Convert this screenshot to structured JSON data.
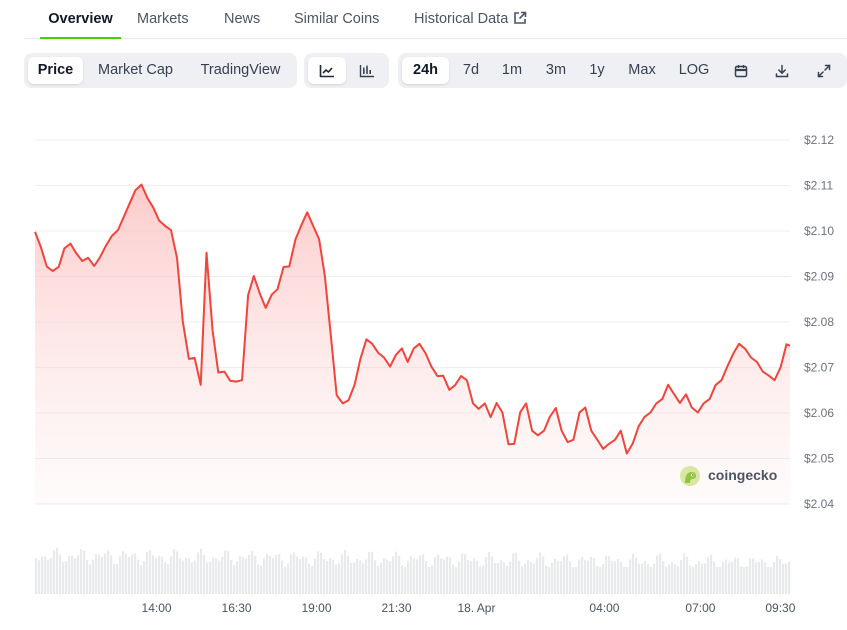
{
  "tabs": [
    {
      "label": "Overview",
      "active": true
    },
    {
      "label": "Markets"
    },
    {
      "label": "News"
    },
    {
      "label": "Similar Coins"
    },
    {
      "label": "Historical Data",
      "icon": "external-link-icon"
    }
  ],
  "toolbar": {
    "metric_buttons": [
      {
        "label": "Price",
        "active": true
      },
      {
        "label": "Market Cap"
      },
      {
        "label": "TradingView"
      }
    ],
    "chart_type_icons": [
      "line-chart-icon",
      "candlestick-chart-icon"
    ],
    "range_buttons": [
      {
        "label": "24h",
        "active": true
      },
      {
        "label": "7d"
      },
      {
        "label": "1m"
      },
      {
        "label": "3m"
      },
      {
        "label": "1y"
      },
      {
        "label": "Max"
      },
      {
        "label": "LOG"
      }
    ],
    "action_icons": [
      "calendar-icon",
      "download-icon",
      "fullscreen-icon"
    ]
  },
  "watermark": {
    "text": "coingecko",
    "icon": "gecko-logo-icon"
  },
  "colors": {
    "line": "#f0453a",
    "fill": "#fde2e2",
    "accent": "#4bcc00",
    "volume": "#e9eaec"
  },
  "chart_data": {
    "type": "area",
    "title": "",
    "xlabel": "",
    "ylabel": "",
    "x_tick_labels": [
      "14:00",
      "16:30",
      "19:00",
      "21:30",
      "18. Apr",
      "04:00",
      "07:00",
      "09:30"
    ],
    "x_tick_hours": [
      14,
      16.5,
      19,
      21.5,
      24,
      28,
      31,
      33.5
    ],
    "x_range_hours": [
      10.2,
      33.8
    ],
    "y_tick_labels": [
      "$2.04",
      "$2.05",
      "$2.06",
      "$2.07",
      "$2.08",
      "$2.09",
      "$2.10",
      "$2.11",
      "$2.12"
    ],
    "y_ticks": [
      2.04,
      2.05,
      2.06,
      2.07,
      2.08,
      2.09,
      2.1,
      2.11,
      2.12
    ],
    "ylim": [
      2.04,
      2.12
    ],
    "grid": true,
    "series": [
      {
        "points": [
          [
            10.2,
            2.0998
          ],
          [
            10.38,
            2.0965
          ],
          [
            10.57,
            2.0922
          ],
          [
            10.75,
            2.0912
          ],
          [
            10.94,
            2.0921
          ],
          [
            11.12,
            2.0962
          ],
          [
            11.31,
            2.0972
          ],
          [
            11.49,
            2.0951
          ],
          [
            11.68,
            2.0934
          ],
          [
            11.86,
            2.0941
          ],
          [
            12.05,
            2.0923
          ],
          [
            12.23,
            2.0942
          ],
          [
            12.42,
            2.0968
          ],
          [
            12.6,
            2.0989
          ],
          [
            12.79,
            2.1002
          ],
          [
            12.97,
            2.103
          ],
          [
            13.16,
            2.1061
          ],
          [
            13.34,
            2.109
          ],
          [
            13.53,
            2.1102
          ],
          [
            13.71,
            2.1073
          ],
          [
            13.9,
            2.1051
          ],
          [
            14.08,
            2.1023
          ],
          [
            14.27,
            2.1011
          ],
          [
            14.45,
            2.1002
          ],
          [
            14.64,
            2.0941
          ],
          [
            14.82,
            2.0801
          ],
          [
            15.01,
            2.0719
          ],
          [
            15.19,
            2.0721
          ],
          [
            15.38,
            2.0662
          ],
          [
            15.56,
            2.0952
          ],
          [
            15.75,
            2.0781
          ],
          [
            15.93,
            2.0689
          ],
          [
            16.12,
            2.0691
          ],
          [
            16.3,
            2.0671
          ],
          [
            16.49,
            2.0669
          ],
          [
            16.67,
            2.0672
          ],
          [
            16.86,
            2.0859
          ],
          [
            17.04,
            2.0901
          ],
          [
            17.23,
            2.0862
          ],
          [
            17.41,
            2.0831
          ],
          [
            17.6,
            2.086
          ],
          [
            17.78,
            2.0872
          ],
          [
            17.97,
            2.0921
          ],
          [
            18.15,
            2.0922
          ],
          [
            18.34,
            2.0981
          ],
          [
            18.52,
            2.1012
          ],
          [
            18.71,
            2.1041
          ],
          [
            18.89,
            2.1012
          ],
          [
            19.08,
            2.0982
          ],
          [
            19.26,
            2.0902
          ],
          [
            19.45,
            2.0769
          ],
          [
            19.63,
            2.0639
          ],
          [
            19.82,
            2.0621
          ],
          [
            20.0,
            2.0628
          ],
          [
            20.19,
            2.0662
          ],
          [
            20.37,
            2.0719
          ],
          [
            20.56,
            2.0762
          ],
          [
            20.74,
            2.0752
          ],
          [
            20.93,
            2.0732
          ],
          [
            21.11,
            2.0722
          ],
          [
            21.3,
            2.0702
          ],
          [
            21.48,
            2.0728
          ],
          [
            21.67,
            2.0742
          ],
          [
            21.85,
            2.0712
          ],
          [
            22.04,
            2.0742
          ],
          [
            22.22,
            2.0752
          ],
          [
            22.41,
            2.0731
          ],
          [
            22.59,
            2.0702
          ],
          [
            22.78,
            2.0681
          ],
          [
            22.96,
            2.0682
          ],
          [
            23.15,
            2.0651
          ],
          [
            23.33,
            2.0661
          ],
          [
            23.52,
            2.0681
          ],
          [
            23.7,
            2.0672
          ],
          [
            23.89,
            2.0621
          ],
          [
            24.07,
            2.0609
          ],
          [
            24.26,
            2.0621
          ],
          [
            24.44,
            2.0591
          ],
          [
            24.63,
            2.0622
          ],
          [
            24.81,
            2.0601
          ],
          [
            25.0,
            2.0531
          ],
          [
            25.18,
            2.0532
          ],
          [
            25.37,
            2.0602
          ],
          [
            25.55,
            2.0621
          ],
          [
            25.74,
            2.0561
          ],
          [
            25.92,
            2.0551
          ],
          [
            26.11,
            2.0561
          ],
          [
            26.29,
            2.0591
          ],
          [
            26.48,
            2.0611
          ],
          [
            26.66,
            2.0561
          ],
          [
            26.85,
            2.0536
          ],
          [
            27.03,
            2.0541
          ],
          [
            27.22,
            2.0601
          ],
          [
            27.4,
            2.0612
          ],
          [
            27.59,
            2.0561
          ],
          [
            27.77,
            2.0542
          ],
          [
            27.96,
            2.0521
          ],
          [
            28.14,
            2.0532
          ],
          [
            28.33,
            2.0541
          ],
          [
            28.51,
            2.0561
          ],
          [
            28.7,
            2.0511
          ],
          [
            28.88,
            2.0532
          ],
          [
            29.07,
            2.0571
          ],
          [
            29.25,
            2.0591
          ],
          [
            29.44,
            2.0601
          ],
          [
            29.62,
            2.0621
          ],
          [
            29.81,
            2.0631
          ],
          [
            29.99,
            2.0662
          ],
          [
            30.18,
            2.0641
          ],
          [
            30.36,
            2.0622
          ],
          [
            30.55,
            2.0641
          ],
          [
            30.73,
            2.0612
          ],
          [
            30.92,
            2.0601
          ],
          [
            31.1,
            2.0621
          ],
          [
            31.29,
            2.0631
          ],
          [
            31.47,
            2.0661
          ],
          [
            31.66,
            2.0672
          ],
          [
            31.84,
            2.0702
          ],
          [
            32.03,
            2.0731
          ],
          [
            32.21,
            2.0752
          ],
          [
            32.4,
            2.0741
          ],
          [
            32.58,
            2.0722
          ],
          [
            32.77,
            2.0712
          ],
          [
            32.95,
            2.0691
          ],
          [
            33.14,
            2.0682
          ],
          [
            33.32,
            2.0672
          ],
          [
            33.51,
            2.0701
          ],
          [
            33.69,
            2.0751
          ],
          [
            33.8,
            2.0748
          ]
        ]
      }
    ]
  }
}
